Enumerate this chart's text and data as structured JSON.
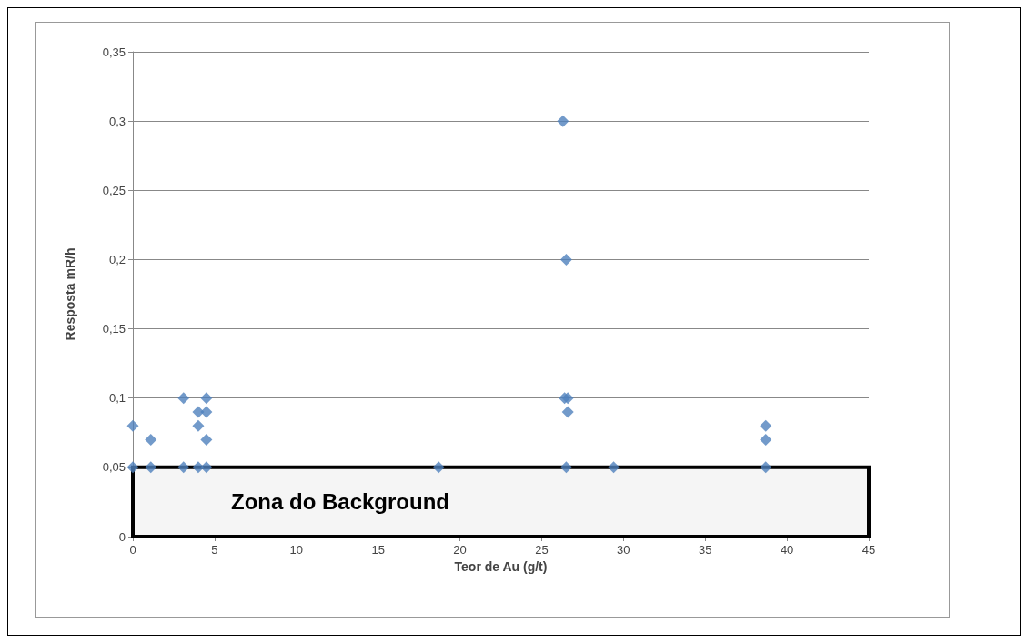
{
  "chart_data": {
    "type": "scatter",
    "xlabel": "Teor de Au (g/t)",
    "ylabel": "Resposta mR/h",
    "marker": "diamond",
    "grid": "y",
    "x": [
      0,
      0,
      1.1,
      1.1,
      3.1,
      3.1,
      4.0,
      4.0,
      4.0,
      4.5,
      4.5,
      4.5,
      4.5,
      18.7,
      26.3,
      26.5,
      26.4,
      26.6,
      26.6,
      26.5,
      29.4,
      38.7,
      38.7,
      38.7
    ],
    "series": [
      {
        "color": "#4f81bd",
        "values": [
          0.08,
          0.05,
          0.07,
          0.05,
          0.1,
          0.05,
          0.09,
          0.08,
          0.05,
          0.1,
          0.09,
          0.07,
          0.05,
          0.05,
          0.3,
          0.2,
          0.1,
          0.1,
          0.09,
          0.05,
          0.05,
          0.08,
          0.07,
          0.05
        ]
      }
    ],
    "xlim": [
      0,
      45
    ],
    "xticks": [
      0,
      5,
      10,
      15,
      20,
      25,
      30,
      35,
      40,
      45
    ],
    "ylim": [
      0,
      0.35
    ],
    "yticks": [
      {
        "value": 0,
        "label": "0"
      },
      {
        "value": 0.05,
        "label": "0,05"
      },
      {
        "value": 0.1,
        "label": "0,1"
      },
      {
        "value": 0.15,
        "label": "0,15"
      },
      {
        "value": 0.2,
        "label": "0,2"
      },
      {
        "value": 0.25,
        "label": "0,25"
      },
      {
        "value": 0.3,
        "label": "0,3"
      },
      {
        "value": 0.35,
        "label": "0,35"
      }
    ],
    "bands": [
      {
        "axis": "y",
        "from": 0,
        "to": 0.05,
        "label": "Zona do Background",
        "color": "#000000"
      }
    ]
  }
}
